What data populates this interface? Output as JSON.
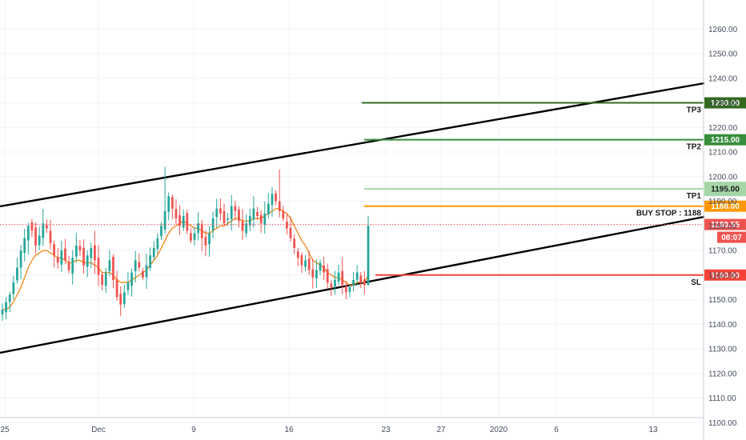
{
  "chart_data": {
    "type": "candlestick",
    "title": "",
    "xlabel": "",
    "ylabel": "",
    "ylim": [
      1097,
      1268
    ],
    "y_ticks": [
      1100,
      1110,
      1120,
      1130,
      1140,
      1150,
      1160,
      1170,
      1180,
      1190,
      1200,
      1210,
      1220,
      1230,
      1240,
      1250,
      1260
    ],
    "y_tick_labels": [
      "1100.00",
      "1110.00",
      "1120.00",
      "1130.00",
      "1140.00",
      "1150.00",
      "1160.00",
      "1170.00",
      "1180.00",
      "1190.00",
      "1200.00",
      "1210.00",
      "1220.00",
      "1230.00",
      "1240.00",
      "1250.00",
      "1260.00"
    ],
    "x_tick_labels": [
      "25",
      "Dec",
      "9",
      "16",
      "23",
      "27",
      "2020",
      "6",
      "13"
    ],
    "grid": true,
    "series": [
      {
        "kind": "ohlc",
        "close_path": [
          1146,
          1149,
          1152,
          1157,
          1163,
          1170,
          1175,
          1180,
          1178,
          1172,
          1176,
          1181,
          1179,
          1173,
          1168,
          1165,
          1170,
          1166,
          1162,
          1167,
          1172,
          1170,
          1164,
          1168,
          1171,
          1166,
          1160,
          1156,
          1161,
          1166,
          1158,
          1151,
          1148,
          1153,
          1157,
          1161,
          1166,
          1163,
          1159,
          1164,
          1168,
          1171,
          1175,
          1180,
          1186,
          1192,
          1187,
          1183,
          1180,
          1184,
          1178,
          1174,
          1177,
          1181,
          1175,
          1172,
          1177,
          1183,
          1187,
          1185,
          1181,
          1183,
          1188,
          1186,
          1182,
          1178,
          1181,
          1184,
          1187,
          1184,
          1181,
          1185,
          1189,
          1193,
          1190,
          1186,
          1183,
          1179,
          1175,
          1171,
          1167,
          1164,
          1166,
          1162,
          1159,
          1162,
          1165,
          1161,
          1157,
          1155,
          1158,
          1161,
          1156,
          1153,
          1155,
          1158,
          1161,
          1157,
          1156,
          1180
        ],
        "up_color": "#26a69a",
        "down_color": "#ef5350"
      },
      {
        "kind": "moving_average",
        "color": "#f57c00",
        "values": [
          1146,
          1146,
          1147,
          1149,
          1152,
          1155,
          1159,
          1163,
          1166,
          1168,
          1169,
          1170,
          1170,
          1169,
          1168,
          1167,
          1167,
          1166,
          1165,
          1165,
          1166,
          1166,
          1165,
          1165,
          1165,
          1164,
          1163,
          1161,
          1161,
          1161,
          1160,
          1158,
          1157,
          1157,
          1157,
          1158,
          1159,
          1160,
          1161,
          1162,
          1164,
          1166,
          1168,
          1171,
          1174,
          1177,
          1179,
          1180,
          1181,
          1182,
          1181,
          1180,
          1179,
          1179,
          1178,
          1177,
          1177,
          1178,
          1179,
          1180,
          1180,
          1181,
          1182,
          1183,
          1183,
          1182,
          1182,
          1182,
          1183,
          1183,
          1183,
          1184,
          1185,
          1186,
          1187,
          1187,
          1186,
          1185,
          1183,
          1180,
          1177,
          1174,
          1172,
          1169,
          1166,
          1165,
          1164,
          1163,
          1161,
          1160,
          1159,
          1159,
          1158,
          1157,
          1156,
          1156,
          1157,
          1157,
          1157,
          1160
        ]
      }
    ],
    "trendlines": [
      {
        "name": "channel-upper",
        "color": "#000000"
      },
      {
        "name": "channel-lower",
        "color": "#000000"
      }
    ],
    "levels": [
      {
        "tag": "TP3",
        "value": 1230,
        "label": "1230.00",
        "color": "#33691e",
        "bg": "#33691e",
        "text_color": "#ffffff"
      },
      {
        "tag": "TP2",
        "value": 1215,
        "label": "1215.00",
        "color": "#388e3c",
        "bg": "#388e3c",
        "text_color": "#ffffff"
      },
      {
        "tag": "TP1",
        "value": 1195,
        "label": "1195.00",
        "color": "#a5d6a7",
        "bg": "#a5d6a7",
        "text_color": "#1a1a1a"
      },
      {
        "tag": "BUY STOP : 1188",
        "value": 1188,
        "label": "1188.00",
        "color": "#ff9800",
        "bg": "#ff9800",
        "text_color": "#ffffff"
      },
      {
        "tag": "SL",
        "value": 1160,
        "label": "1160.00",
        "color": "#f44336",
        "bg": "#f44336",
        "text_color": "#ffffff"
      }
    ],
    "current_price": {
      "value": 1180.55,
      "label": "1180.55",
      "countdown": "08:07",
      "color": "#ef5350"
    }
  }
}
